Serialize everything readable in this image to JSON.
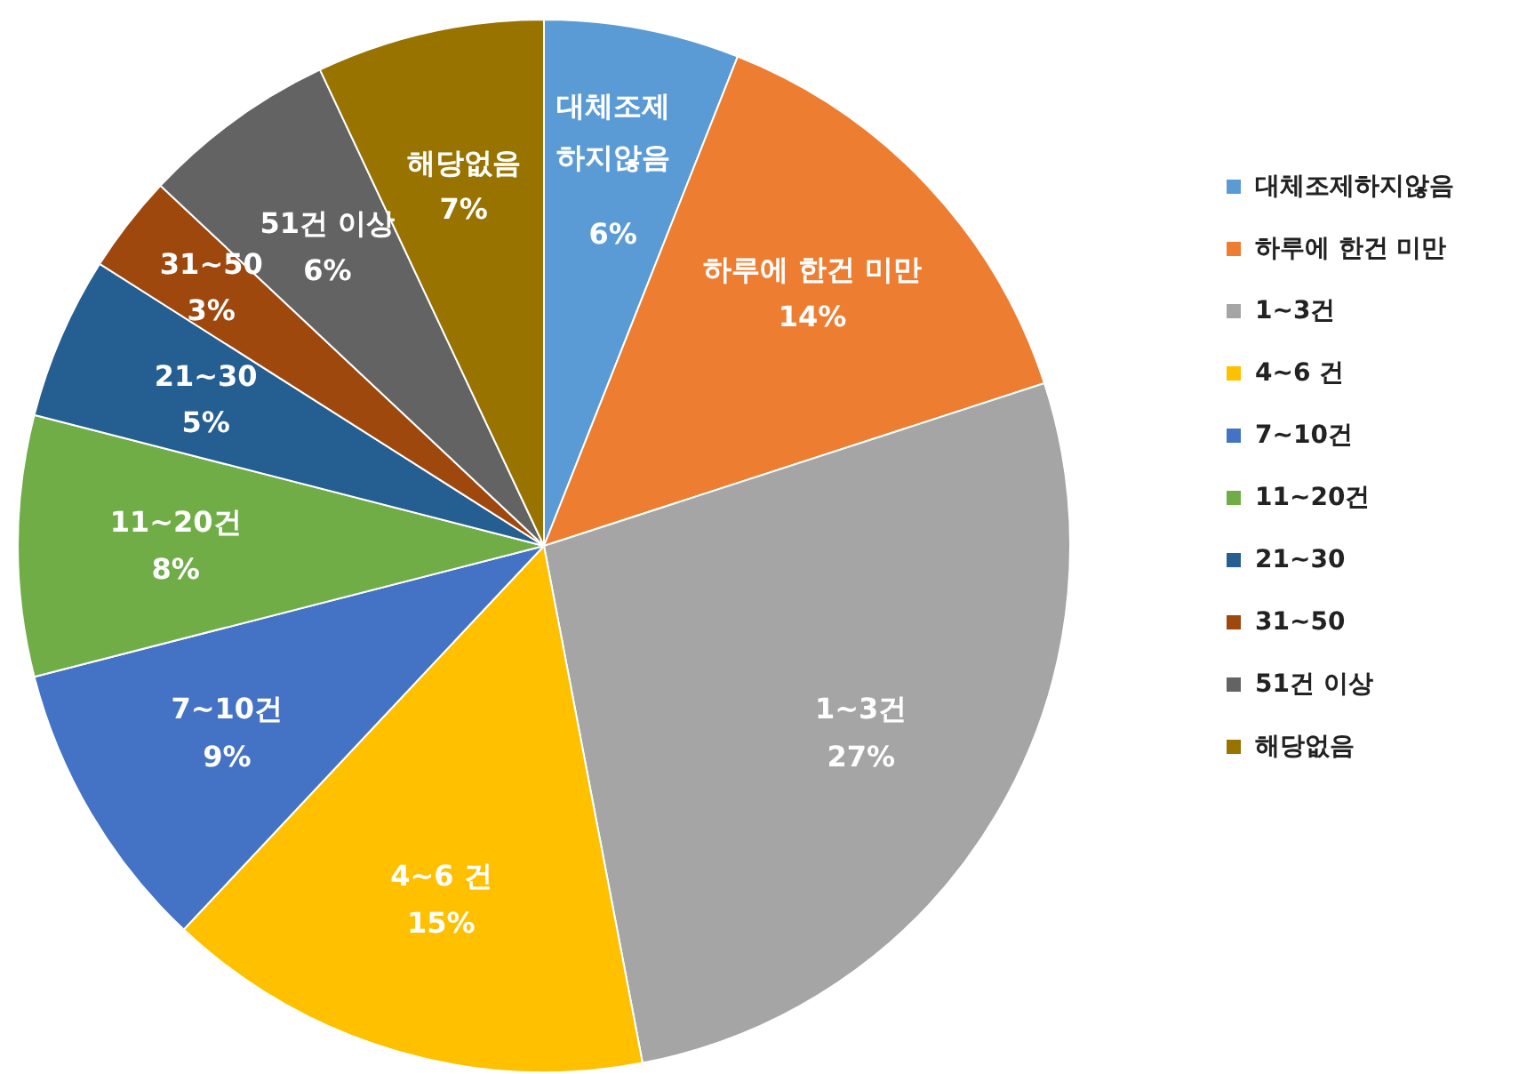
{
  "chart_data": {
    "type": "pie",
    "categories": [
      "대체조제하지않음",
      "하루에 한건 미만",
      "1~3건",
      "4~6 건",
      "7~10건",
      "11~20건",
      "21~30",
      "31~50",
      "51건 이상",
      "해당없음"
    ],
    "values": [
      6,
      14,
      27,
      15,
      9,
      8,
      5,
      3,
      6,
      7
    ],
    "colors": [
      "#5b9bd5",
      "#ed7d31",
      "#a5a5a5",
      "#ffc000",
      "#4472c4",
      "#70ad47",
      "#255e91",
      "#9e480e",
      "#636363",
      "#997300"
    ],
    "value_labels": [
      "6%",
      "14%",
      "27%",
      "15%",
      "9%",
      "8%",
      "5%",
      "3%",
      "6%",
      "7%"
    ],
    "legend": "right"
  }
}
